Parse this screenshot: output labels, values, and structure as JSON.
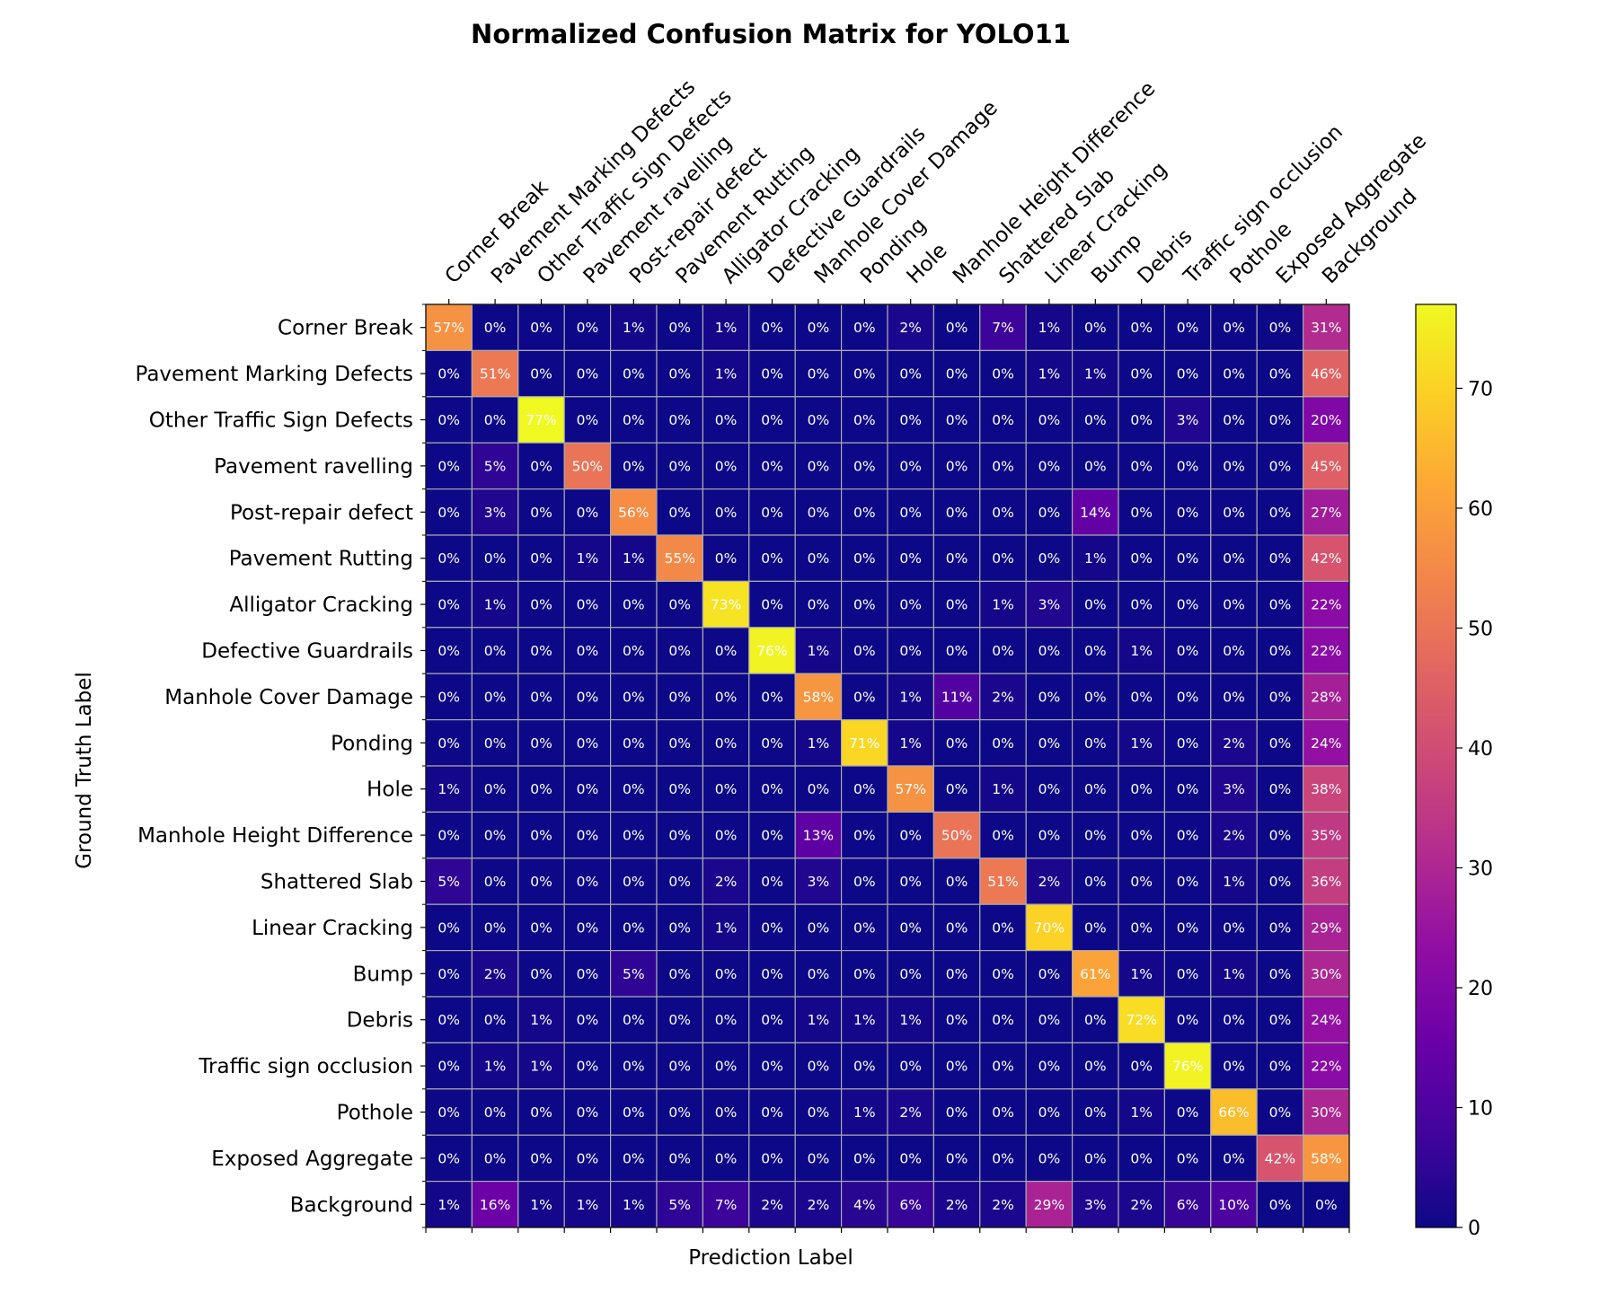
{
  "chart_data": {
    "type": "heatmap",
    "title": "Normalized Confusion Matrix for YOLO11",
    "xlabel": "Prediction Label",
    "ylabel": "Ground Truth Label",
    "x_categories": [
      "Corner Break",
      "Pavement Marking Defects",
      "Other Traffic Sign Defects",
      "Pavement ravelling",
      "Post-repair defect",
      "Pavement Rutting",
      "Alligator Cracking",
      "Defective Guardrails",
      "Manhole Cover Damage",
      "Ponding",
      "Hole",
      "Manhole Height Difference",
      "Shattered Slab",
      "Linear Cracking",
      "Bump",
      "Debris",
      "Traffic sign occlusion",
      "Pothole",
      "Exposed Aggregate",
      "Background"
    ],
    "y_categories": [
      "Corner Break",
      "Pavement Marking Defects",
      "Other Traffic Sign Defects",
      "Pavement ravelling",
      "Post-repair defect",
      "Pavement Rutting",
      "Alligator Cracking",
      "Defective Guardrails",
      "Manhole Cover Damage",
      "Ponding",
      "Hole",
      "Manhole Height Difference",
      "Shattered Slab",
      "Linear Cracking",
      "Bump",
      "Debris",
      "Traffic sign occlusion",
      "Pothole",
      "Exposed Aggregate",
      "Background"
    ],
    "values": [
      [
        57,
        0,
        0,
        0,
        1,
        0,
        1,
        0,
        0,
        0,
        2,
        0,
        7,
        1,
        0,
        0,
        0,
        0,
        0,
        31
      ],
      [
        0,
        51,
        0,
        0,
        0,
        0,
        1,
        0,
        0,
        0,
        0,
        0,
        0,
        1,
        1,
        0,
        0,
        0,
        0,
        46
      ],
      [
        0,
        0,
        77,
        0,
        0,
        0,
        0,
        0,
        0,
        0,
        0,
        0,
        0,
        0,
        0,
        0,
        3,
        0,
        0,
        20
      ],
      [
        0,
        5,
        0,
        50,
        0,
        0,
        0,
        0,
        0,
        0,
        0,
        0,
        0,
        0,
        0,
        0,
        0,
        0,
        0,
        45
      ],
      [
        0,
        3,
        0,
        0,
        56,
        0,
        0,
        0,
        0,
        0,
        0,
        0,
        0,
        0,
        14,
        0,
        0,
        0,
        0,
        27
      ],
      [
        0,
        0,
        0,
        1,
        1,
        55,
        0,
        0,
        0,
        0,
        0,
        0,
        0,
        0,
        1,
        0,
        0,
        0,
        0,
        42
      ],
      [
        0,
        1,
        0,
        0,
        0,
        0,
        73,
        0,
        0,
        0,
        0,
        0,
        1,
        3,
        0,
        0,
        0,
        0,
        0,
        22
      ],
      [
        0,
        0,
        0,
        0,
        0,
        0,
        0,
        76,
        1,
        0,
        0,
        0,
        0,
        0,
        0,
        1,
        0,
        0,
        0,
        22
      ],
      [
        0,
        0,
        0,
        0,
        0,
        0,
        0,
        0,
        58,
        0,
        1,
        11,
        2,
        0,
        0,
        0,
        0,
        0,
        0,
        28
      ],
      [
        0,
        0,
        0,
        0,
        0,
        0,
        0,
        0,
        1,
        71,
        1,
        0,
        0,
        0,
        0,
        1,
        0,
        2,
        0,
        24
      ],
      [
        1,
        0,
        0,
        0,
        0,
        0,
        0,
        0,
        0,
        0,
        57,
        0,
        1,
        0,
        0,
        0,
        0,
        3,
        0,
        38
      ],
      [
        0,
        0,
        0,
        0,
        0,
        0,
        0,
        0,
        13,
        0,
        0,
        50,
        0,
        0,
        0,
        0,
        0,
        2,
        0,
        35
      ],
      [
        5,
        0,
        0,
        0,
        0,
        0,
        2,
        0,
        3,
        0,
        0,
        0,
        51,
        2,
        0,
        0,
        0,
        1,
        0,
        36
      ],
      [
        0,
        0,
        0,
        0,
        0,
        0,
        1,
        0,
        0,
        0,
        0,
        0,
        0,
        70,
        0,
        0,
        0,
        0,
        0,
        29
      ],
      [
        0,
        2,
        0,
        0,
        5,
        0,
        0,
        0,
        0,
        0,
        0,
        0,
        0,
        0,
        61,
        1,
        0,
        1,
        0,
        30
      ],
      [
        0,
        0,
        1,
        0,
        0,
        0,
        0,
        0,
        1,
        1,
        1,
        0,
        0,
        0,
        0,
        72,
        0,
        0,
        0,
        24
      ],
      [
        0,
        1,
        1,
        0,
        0,
        0,
        0,
        0,
        0,
        0,
        0,
        0,
        0,
        0,
        0,
        0,
        76,
        0,
        0,
        22
      ],
      [
        0,
        0,
        0,
        0,
        0,
        0,
        0,
        0,
        0,
        1,
        2,
        0,
        0,
        0,
        0,
        1,
        0,
        66,
        0,
        30
      ],
      [
        0,
        0,
        0,
        0,
        0,
        0,
        0,
        0,
        0,
        0,
        0,
        0,
        0,
        0,
        0,
        0,
        0,
        0,
        42,
        58
      ],
      [
        1,
        16,
        1,
        1,
        1,
        5,
        7,
        2,
        2,
        4,
        6,
        2,
        2,
        29,
        3,
        2,
        6,
        10,
        0,
        0
      ]
    ],
    "value_suffix": "%",
    "colormap": "plasma",
    "vmin": 0,
    "vmax": 77,
    "colorbar_ticks": [
      0,
      10,
      20,
      30,
      40,
      50,
      60,
      70
    ],
    "x_tick_position": "top",
    "grid_color": "#aaaaaa"
  }
}
